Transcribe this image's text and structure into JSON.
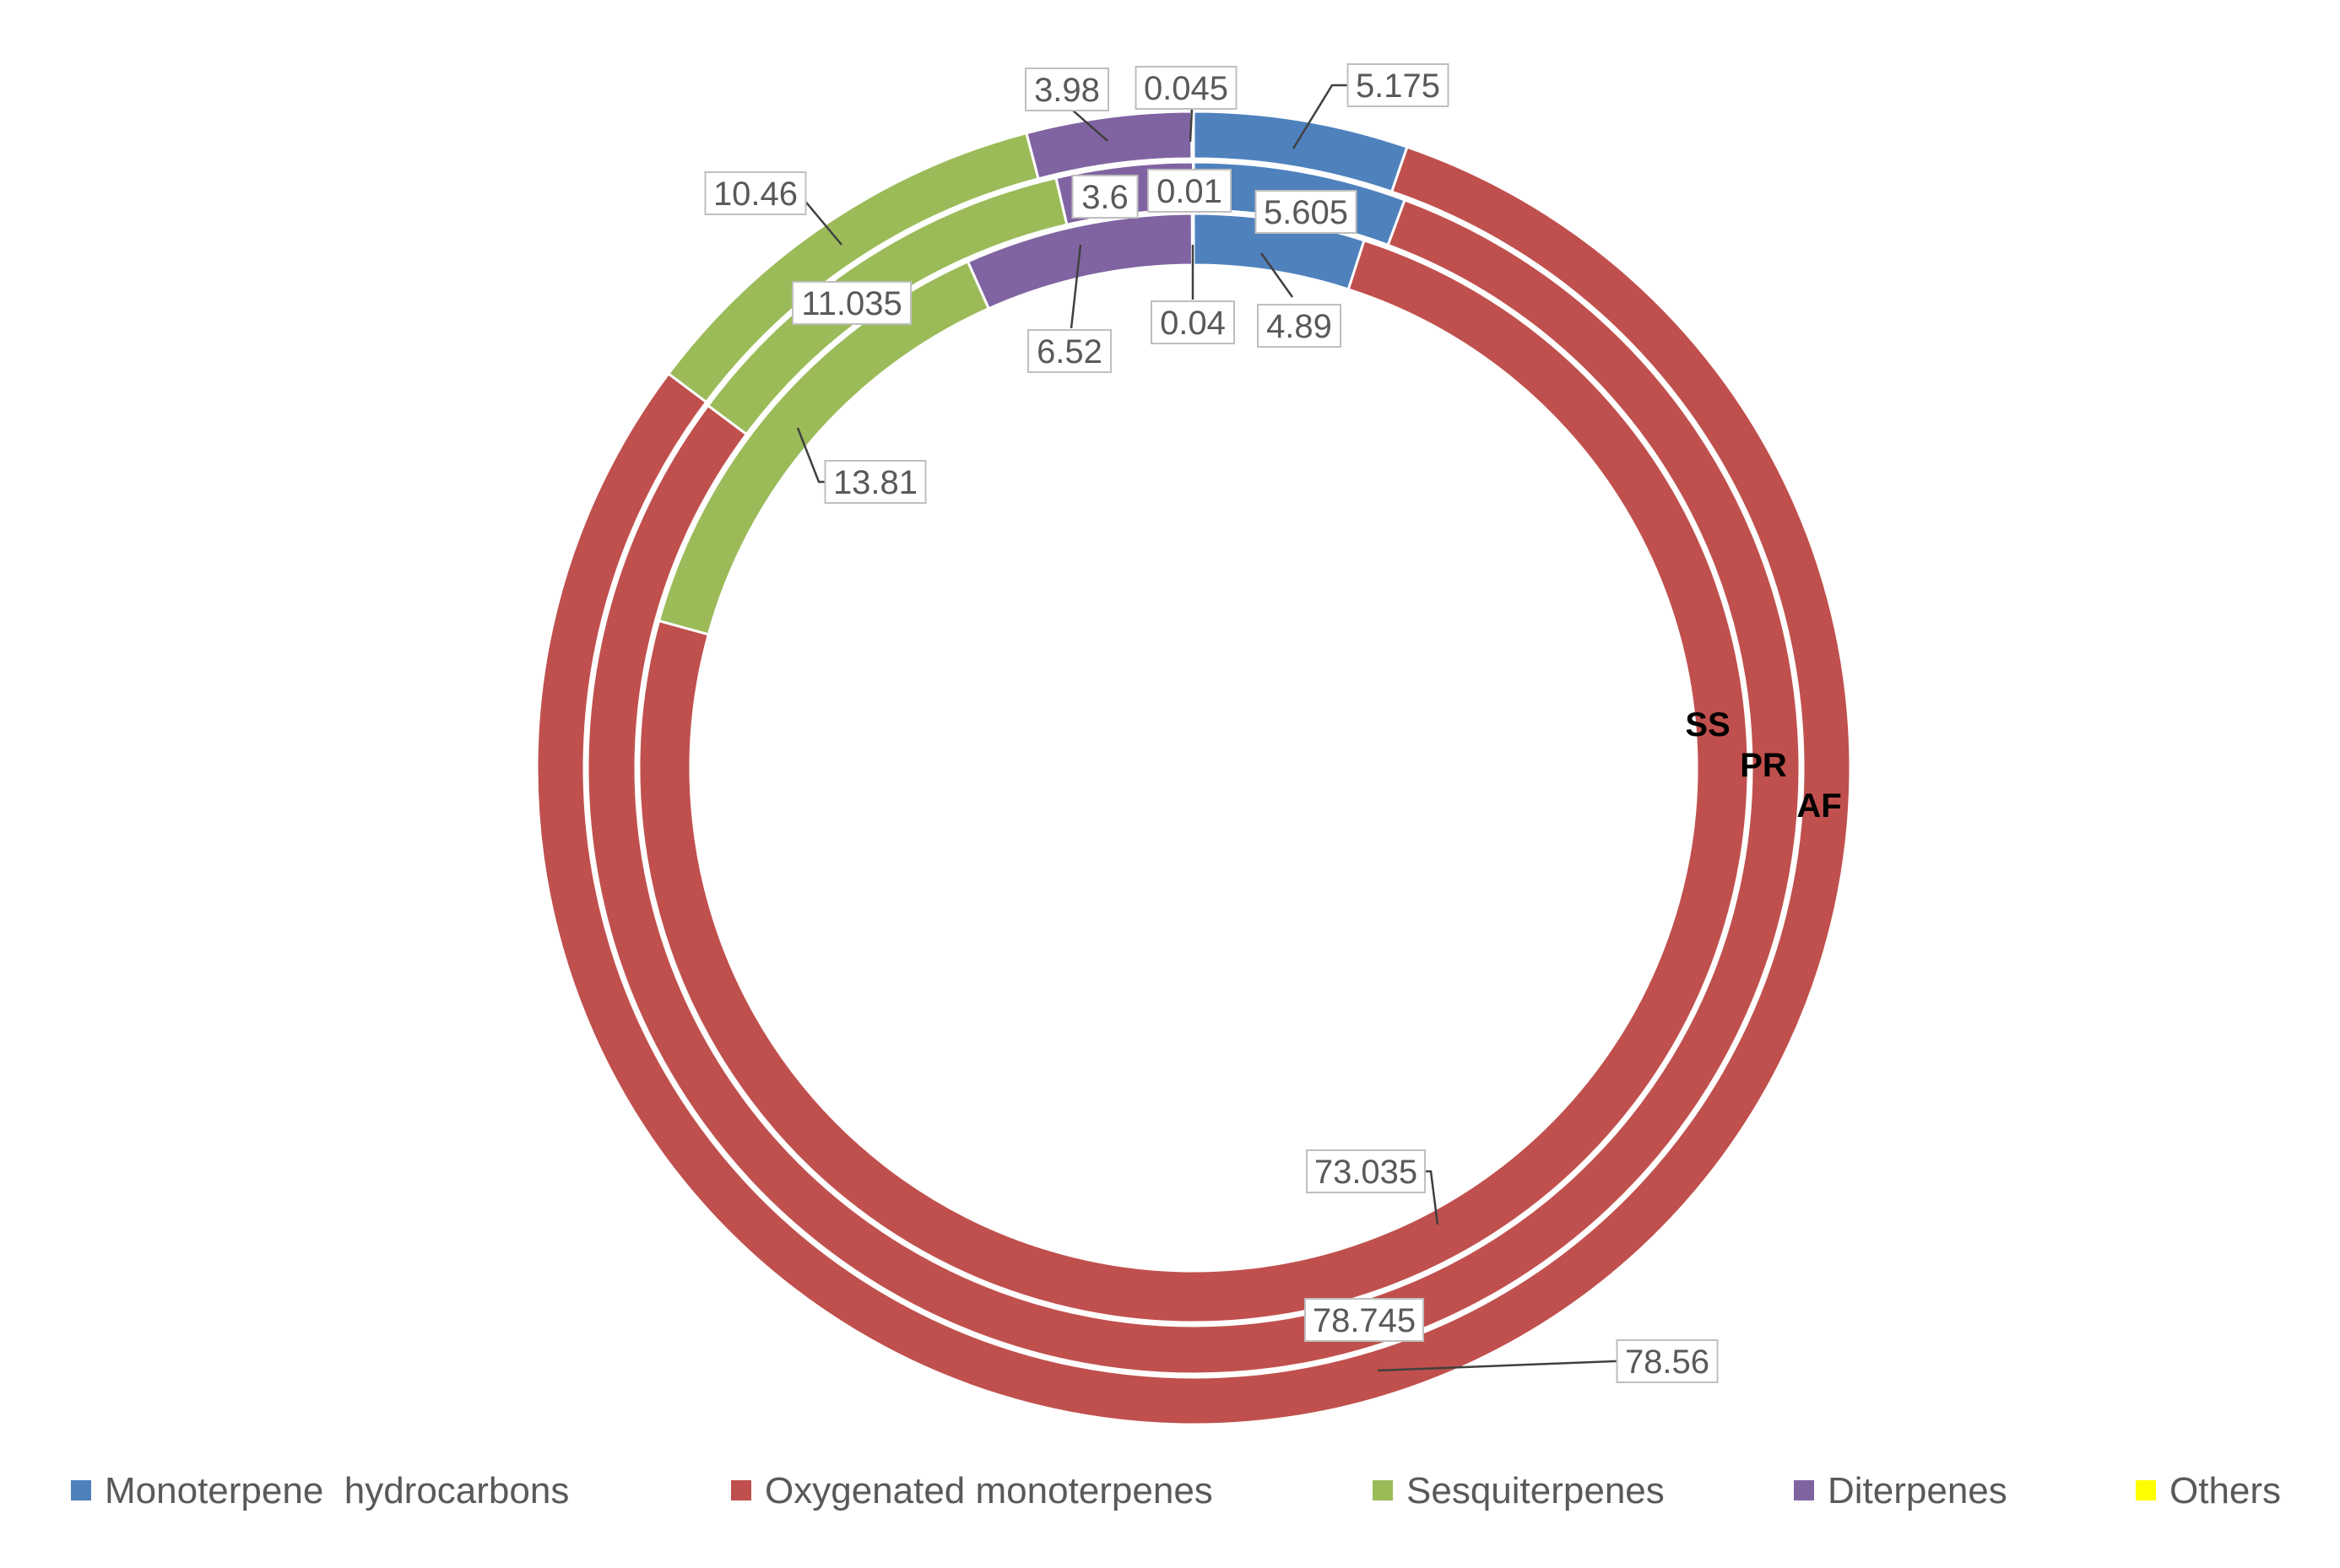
{
  "chart_data": {
    "type": "doughnut",
    "title": "",
    "categories": [
      "Monoterpene  hydrocarbons",
      "Oxygenated monoterpenes",
      "Sesquiterpenes",
      "Diterpenes",
      "Others"
    ],
    "colors": [
      "#4f81bd",
      "#c0504d",
      "#9bbb59",
      "#8064a2",
      "#ffff00"
    ],
    "legend_position": "bottom",
    "series": [
      {
        "name": "AF",
        "ring": "outer",
        "values": [
          5.175,
          78.56,
          10.46,
          3.98,
          0.045
        ],
        "labels": [
          "5.175",
          "78.56",
          "10.46",
          "3.98",
          "0.045"
        ]
      },
      {
        "name": "PR",
        "ring": "middle",
        "values": [
          5.605,
          78.745,
          11.035,
          3.6,
          0.01
        ],
        "labels": [
          "5.605",
          "78.745",
          "11.035",
          "3.6",
          "0.01"
        ]
      },
      {
        "name": "SS",
        "ring": "inner",
        "values": [
          4.89,
          73.035,
          13.81,
          6.52,
          0.04
        ],
        "labels": [
          "4.89",
          "73.035",
          "13.81",
          "6.52",
          "0.04"
        ]
      }
    ]
  }
}
